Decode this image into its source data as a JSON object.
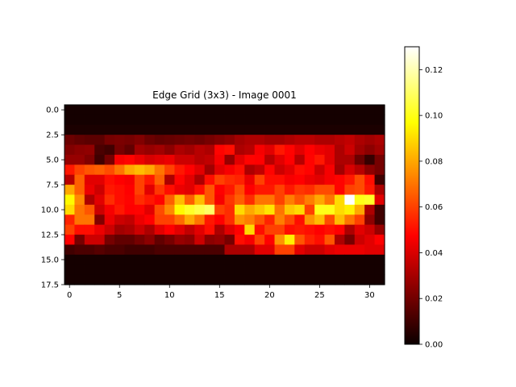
{
  "chart_data": {
    "type": "heatmap",
    "title": "Edge Grid (3x3) - Image 0001",
    "xlabel": "",
    "ylabel": "",
    "colormap": "hot",
    "rows": 18,
    "cols": 32,
    "xlim": [
      -0.5,
      31.5
    ],
    "ylim": [
      17.5,
      -0.5
    ],
    "x_ticks": [
      0,
      5,
      10,
      15,
      20,
      25,
      30
    ],
    "x_tick_labels": [
      "0",
      "5",
      "10",
      "15",
      "20",
      "25",
      "30"
    ],
    "y_ticks": [
      0.0,
      2.5,
      5.0,
      7.5,
      10.0,
      12.5,
      15.0,
      17.5
    ],
    "y_tick_labels": [
      "0.0",
      "2.5",
      "5.0",
      "7.5",
      "10.0",
      "12.5",
      "15.0",
      "17.5"
    ],
    "colorbar": {
      "min": 0.0,
      "max": 0.13,
      "ticks": [
        0.0,
        0.02,
        0.04,
        0.06,
        0.08,
        0.1,
        0.12
      ],
      "tick_labels": [
        "0.00",
        "0.02",
        "0.04",
        "0.06",
        "0.08",
        "0.10",
        "0.12"
      ]
    },
    "values": [
      [
        0.002,
        0.002,
        0.002,
        0.002,
        0.002,
        0.002,
        0.002,
        0.002,
        0.002,
        0.002,
        0.002,
        0.002,
        0.002,
        0.002,
        0.002,
        0.002,
        0.002,
        0.002,
        0.002,
        0.002,
        0.002,
        0.002,
        0.002,
        0.002,
        0.002,
        0.002,
        0.002,
        0.002,
        0.002,
        0.002,
        0.002,
        0.002
      ],
      [
        0.002,
        0.002,
        0.002,
        0.002,
        0.002,
        0.002,
        0.002,
        0.002,
        0.002,
        0.002,
        0.002,
        0.002,
        0.002,
        0.002,
        0.002,
        0.002,
        0.002,
        0.002,
        0.002,
        0.002,
        0.002,
        0.002,
        0.002,
        0.002,
        0.002,
        0.002,
        0.002,
        0.002,
        0.002,
        0.002,
        0.002,
        0.002
      ],
      [
        0.003,
        0.003,
        0.003,
        0.003,
        0.003,
        0.003,
        0.003,
        0.003,
        0.003,
        0.003,
        0.003,
        0.003,
        0.003,
        0.003,
        0.003,
        0.003,
        0.003,
        0.003,
        0.003,
        0.003,
        0.003,
        0.003,
        0.003,
        0.003,
        0.003,
        0.003,
        0.003,
        0.003,
        0.003,
        0.003,
        0.003,
        0.003
      ],
      [
        0.018,
        0.016,
        0.015,
        0.015,
        0.02,
        0.021,
        0.02,
        0.022,
        0.018,
        0.016,
        0.017,
        0.018,
        0.019,
        0.018,
        0.02,
        0.022,
        0.024,
        0.028,
        0.03,
        0.03,
        0.028,
        0.028,
        0.03,
        0.032,
        0.032,
        0.03,
        0.03,
        0.032,
        0.034,
        0.03,
        0.028,
        0.03
      ],
      [
        0.022,
        0.024,
        0.025,
        0.012,
        0.01,
        0.02,
        0.016,
        0.028,
        0.026,
        0.028,
        0.024,
        0.03,
        0.028,
        0.032,
        0.03,
        0.048,
        0.05,
        0.03,
        0.032,
        0.044,
        0.04,
        0.052,
        0.048,
        0.04,
        0.046,
        0.042,
        0.04,
        0.03,
        0.036,
        0.028,
        0.024,
        0.028
      ],
      [
        0.026,
        0.026,
        0.022,
        0.01,
        0.02,
        0.044,
        0.048,
        0.042,
        0.038,
        0.04,
        0.042,
        0.036,
        0.036,
        0.032,
        0.034,
        0.044,
        0.026,
        0.04,
        0.048,
        0.046,
        0.032,
        0.04,
        0.046,
        0.032,
        0.048,
        0.052,
        0.04,
        0.03,
        0.03,
        0.018,
        0.008,
        0.02
      ],
      [
        0.052,
        0.06,
        0.064,
        0.066,
        0.062,
        0.07,
        0.08,
        0.084,
        0.08,
        0.07,
        0.06,
        0.052,
        0.046,
        0.04,
        0.028,
        0.04,
        0.044,
        0.05,
        0.03,
        0.034,
        0.048,
        0.036,
        0.04,
        0.05,
        0.048,
        0.036,
        0.044,
        0.028,
        0.038,
        0.032,
        0.024,
        0.02
      ],
      [
        0.032,
        0.066,
        0.04,
        0.04,
        0.05,
        0.046,
        0.044,
        0.06,
        0.052,
        0.066,
        0.03,
        0.048,
        0.04,
        0.03,
        0.05,
        0.06,
        0.056,
        0.054,
        0.042,
        0.06,
        0.05,
        0.05,
        0.044,
        0.046,
        0.042,
        0.04,
        0.044,
        0.048,
        0.052,
        0.062,
        0.05,
        0.01
      ],
      [
        0.08,
        0.066,
        0.042,
        0.036,
        0.052,
        0.05,
        0.046,
        0.06,
        0.04,
        0.058,
        0.05,
        0.042,
        0.04,
        0.05,
        0.064,
        0.046,
        0.052,
        0.062,
        0.046,
        0.052,
        0.052,
        0.06,
        0.052,
        0.058,
        0.056,
        0.062,
        0.062,
        0.048,
        0.06,
        0.062,
        0.052,
        0.03
      ],
      [
        0.096,
        0.074,
        0.03,
        0.04,
        0.056,
        0.05,
        0.048,
        0.056,
        0.052,
        0.048,
        0.066,
        0.084,
        0.066,
        0.084,
        0.064,
        0.044,
        0.058,
        0.066,
        0.056,
        0.07,
        0.07,
        0.06,
        0.072,
        0.064,
        0.072,
        0.08,
        0.07,
        0.09,
        0.13,
        0.1,
        0.102,
        0.04
      ],
      [
        0.09,
        0.07,
        0.064,
        0.036,
        0.044,
        0.052,
        0.046,
        0.048,
        0.04,
        0.062,
        0.074,
        0.096,
        0.102,
        0.106,
        0.11,
        0.06,
        0.056,
        0.09,
        0.08,
        0.086,
        0.092,
        0.07,
        0.086,
        0.09,
        0.06,
        0.1,
        0.1,
        0.09,
        0.094,
        0.08,
        0.03,
        0.01
      ],
      [
        0.054,
        0.07,
        0.07,
        0.022,
        0.042,
        0.036,
        0.034,
        0.042,
        0.046,
        0.06,
        0.06,
        0.068,
        0.08,
        0.07,
        0.052,
        0.046,
        0.056,
        0.076,
        0.072,
        0.064,
        0.054,
        0.072,
        0.062,
        0.05,
        0.076,
        0.084,
        0.062,
        0.084,
        0.07,
        0.06,
        0.024,
        0.01
      ],
      [
        0.06,
        0.05,
        0.05,
        0.042,
        0.036,
        0.028,
        0.03,
        0.036,
        0.03,
        0.04,
        0.046,
        0.04,
        0.034,
        0.04,
        0.05,
        0.03,
        0.04,
        0.046,
        0.09,
        0.05,
        0.06,
        0.06,
        0.05,
        0.052,
        0.05,
        0.046,
        0.05,
        0.046,
        0.03,
        0.04,
        0.036,
        0.026
      ],
      [
        0.046,
        0.02,
        0.036,
        0.036,
        0.02,
        0.016,
        0.016,
        0.02,
        0.024,
        0.016,
        0.02,
        0.026,
        0.024,
        0.036,
        0.024,
        0.026,
        0.02,
        0.05,
        0.044,
        0.06,
        0.046,
        0.076,
        0.094,
        0.064,
        0.054,
        0.05,
        0.064,
        0.03,
        0.02,
        0.036,
        0.04,
        0.046
      ],
      [
        0.01,
        0.012,
        0.012,
        0.014,
        0.012,
        0.012,
        0.01,
        0.01,
        0.01,
        0.012,
        0.012,
        0.012,
        0.012,
        0.012,
        0.012,
        0.012,
        0.03,
        0.03,
        0.03,
        0.04,
        0.04,
        0.06,
        0.06,
        0.04,
        0.036,
        0.036,
        0.04,
        0.042,
        0.042,
        0.042,
        0.04,
        0.04
      ],
      [
        0.002,
        0.002,
        0.002,
        0.002,
        0.002,
        0.002,
        0.002,
        0.002,
        0.002,
        0.002,
        0.002,
        0.002,
        0.002,
        0.002,
        0.002,
        0.002,
        0.002,
        0.002,
        0.002,
        0.002,
        0.002,
        0.002,
        0.002,
        0.002,
        0.002,
        0.002,
        0.002,
        0.002,
        0.002,
        0.002,
        0.002,
        0.002
      ],
      [
        0.002,
        0.002,
        0.002,
        0.002,
        0.002,
        0.002,
        0.002,
        0.002,
        0.002,
        0.002,
        0.002,
        0.002,
        0.002,
        0.002,
        0.002,
        0.002,
        0.002,
        0.002,
        0.002,
        0.002,
        0.002,
        0.002,
        0.002,
        0.002,
        0.002,
        0.002,
        0.002,
        0.002,
        0.002,
        0.002,
        0.002,
        0.002
      ],
      [
        0.002,
        0.002,
        0.002,
        0.002,
        0.002,
        0.002,
        0.002,
        0.002,
        0.002,
        0.002,
        0.002,
        0.002,
        0.002,
        0.002,
        0.002,
        0.002,
        0.002,
        0.002,
        0.002,
        0.002,
        0.002,
        0.002,
        0.002,
        0.002,
        0.002,
        0.002,
        0.002,
        0.002,
        0.002,
        0.002,
        0.002,
        0.002
      ]
    ]
  }
}
